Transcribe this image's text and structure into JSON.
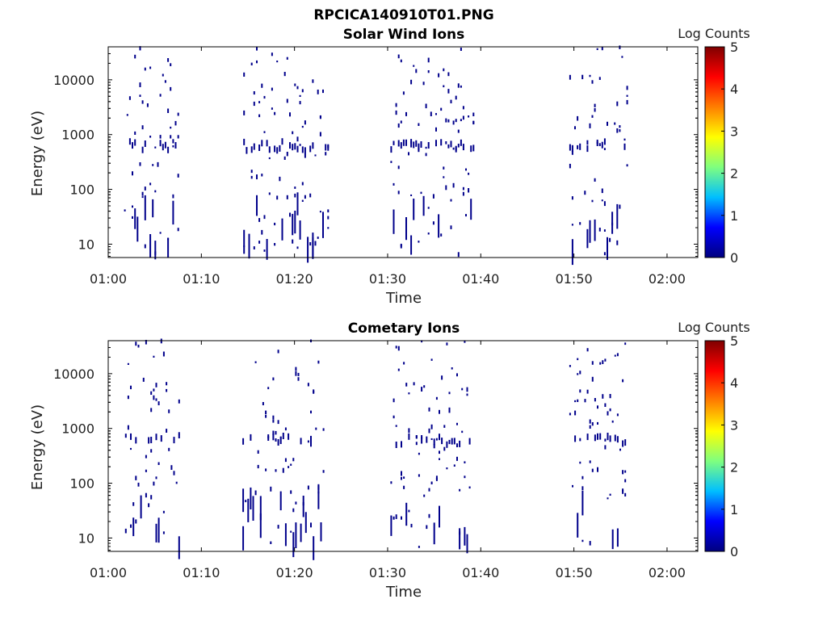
{
  "figure": {
    "title": "RPCICA140910T01.PNG"
  },
  "colormap": {
    "stops": [
      "#00007f",
      "#0000ff",
      "#00bfff",
      "#7fff7f",
      "#ffff00",
      "#ff7f00",
      "#ff0000",
      "#7f0000"
    ],
    "point_color": "#00008b"
  },
  "chart_data": [
    {
      "type": "heatmap",
      "title": "Solar Wind Ions",
      "xlabel": "Time",
      "ylabel": "Energy (eV)",
      "x_ticks": [
        "01:00",
        "01:10",
        "01:20",
        "01:30",
        "01:40",
        "01:50",
        "02:00"
      ],
      "x_tick_minutes": [
        0,
        10,
        20,
        30,
        40,
        50,
        60
      ],
      "xlim_minutes": [
        0,
        63.3
      ],
      "y_scale": "log",
      "y_ticks": [
        "10",
        "100",
        "1000",
        "10000"
      ],
      "y_tick_values": [
        10,
        100,
        1000,
        10000
      ],
      "ylim": [
        5.7,
        40000
      ],
      "colorbar": {
        "label": "Log Counts",
        "ticks": [
          "0",
          "1",
          "2",
          "3",
          "4",
          "5"
        ],
        "range": [
          0,
          5
        ]
      },
      "bursts": [
        {
          "start_min": 1.7,
          "end_min": 7.7,
          "z": 0.3
        },
        {
          "start_min": 14.5,
          "end_min": 23.8,
          "z": 0.3
        },
        {
          "start_min": 30.3,
          "end_min": 39.4,
          "z": 0.3
        },
        {
          "start_min": 49.5,
          "end_min": 55.9,
          "z": 0.3
        }
      ]
    },
    {
      "type": "heatmap",
      "title": "Cometary Ions",
      "xlabel": "Time",
      "ylabel": "Energy (eV)",
      "x_ticks": [
        "01:00",
        "01:10",
        "01:20",
        "01:30",
        "01:40",
        "01:50",
        "02:00"
      ],
      "x_tick_minutes": [
        0,
        10,
        20,
        30,
        40,
        50,
        60
      ],
      "xlim_minutes": [
        0,
        63.3
      ],
      "y_scale": "log",
      "y_ticks": [
        "10",
        "100",
        "1000",
        "10000"
      ],
      "y_tick_values": [
        10,
        100,
        1000,
        10000
      ],
      "ylim": [
        5.7,
        40000
      ],
      "colorbar": {
        "label": "Log Counts",
        "ticks": [
          "0",
          "1",
          "2",
          "3",
          "4",
          "5"
        ],
        "range": [
          0,
          5
        ]
      },
      "bursts": [
        {
          "start_min": 1.8,
          "end_min": 7.8,
          "z": 0.3
        },
        {
          "start_min": 14.4,
          "end_min": 23.3,
          "z": 0.3
        },
        {
          "start_min": 30.3,
          "end_min": 39.0,
          "z": 0.3
        },
        {
          "start_min": 49.5,
          "end_min": 55.7,
          "z": 0.3
        }
      ]
    }
  ]
}
